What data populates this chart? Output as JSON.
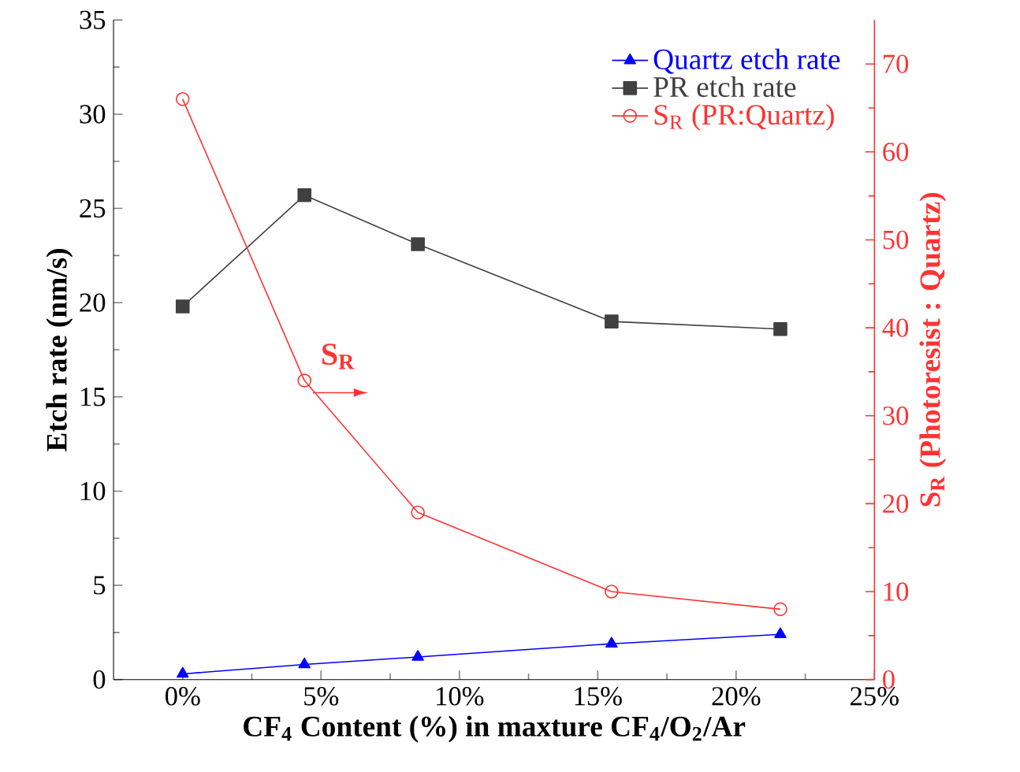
{
  "chart_data": {
    "type": "line",
    "xlabel": "CF$_{4}$ Content (%) in maxture CF$_{4}$/O$_{2}$/Ar",
    "ylabel": "Etch rate (nm/s)",
    "y2label": "S$_{R}$ (Photoresist : Quartz)",
    "x": [
      0,
      4.4,
      8.5,
      15.5,
      21.6
    ],
    "xlim": [
      -2.5,
      25
    ],
    "xticks": [
      {
        "value": 0,
        "label": "0%"
      },
      {
        "value": 5,
        "label": "5%"
      },
      {
        "value": 10,
        "label": "10%"
      },
      {
        "value": 15,
        "label": "15%"
      },
      {
        "value": 20,
        "label": "20%"
      },
      {
        "value": 25,
        "label": "25%"
      }
    ],
    "ylim": [
      0,
      35
    ],
    "yticks": [
      0,
      5,
      10,
      15,
      20,
      25,
      30,
      35
    ],
    "y2lim": [
      0,
      75
    ],
    "y2ticks": [
      0,
      10,
      20,
      30,
      40,
      50,
      60,
      70
    ],
    "series": [
      {
        "name": "Quartz etch rate",
        "color": "#0000ff",
        "marker": "triangle",
        "axis": "y",
        "values": [
          0.3,
          0.8,
          1.2,
          1.9,
          2.4
        ]
      },
      {
        "name": "PR etch rate",
        "color": "#404040",
        "marker": "square",
        "axis": "y",
        "values": [
          19.8,
          25.7,
          23.1,
          19.0,
          18.6
        ]
      },
      {
        "name": "S$_{R}$ (PR:Quartz)",
        "color": "#ff3333",
        "marker": "circle",
        "axis": "y2",
        "values": [
          66,
          34,
          19,
          10,
          8
        ]
      }
    ],
    "legend": "top right",
    "grid": false,
    "annotations": [
      "S$_{R}$"
    ]
  }
}
